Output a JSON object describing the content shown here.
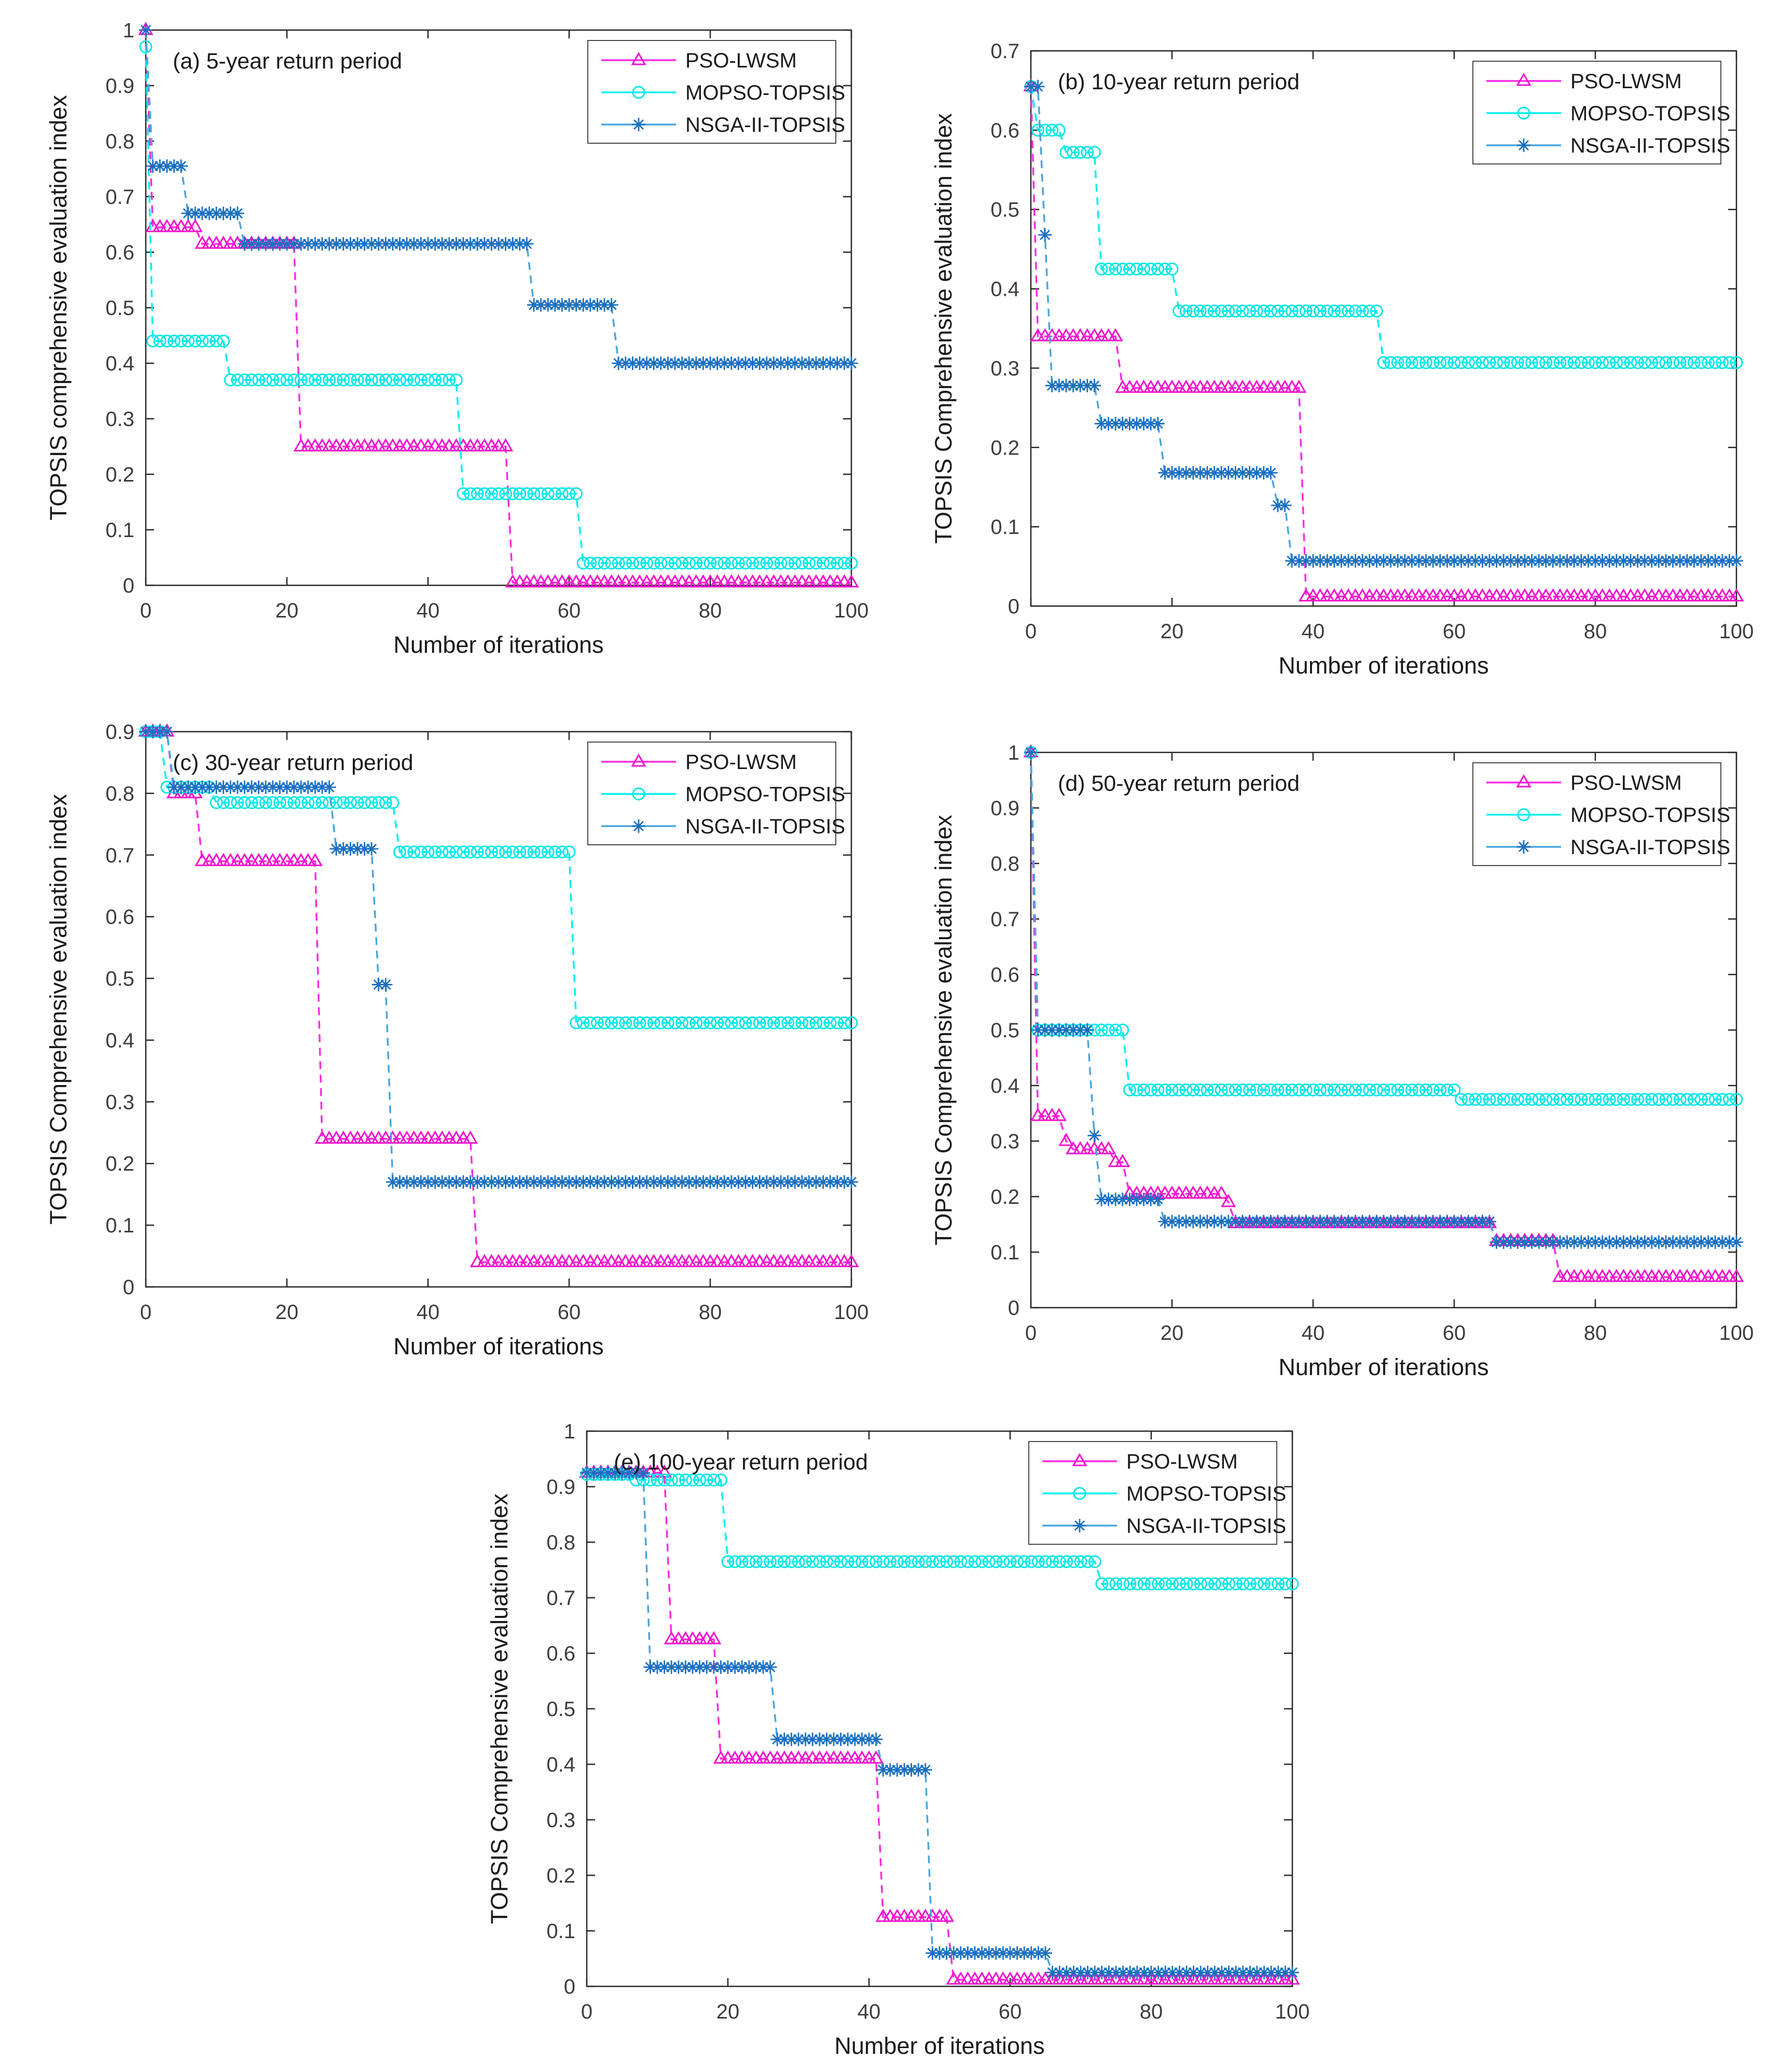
{
  "figure": {
    "description": "Five-panel convergence figure: TOPSIS evaluation index versus iterations for three optimization algorithms under different flood return periods",
    "panels": [
      "a",
      "b",
      "c",
      "d",
      "e"
    ]
  },
  "colors": {
    "pso_line": "#ff2be2",
    "pso_marker": "#f014cc",
    "mopso_line": "#00f0f0",
    "mopso_marker": "#10e6e6",
    "nsga_line": "#4aa6dd",
    "nsga_marker": "#1b6fc0",
    "axis": "#262626",
    "tick_text": "#3d3d3d",
    "label_text": "#1a1a1a",
    "legend_border": "#4a4a4a",
    "background": "#ffffff"
  },
  "chart_data": [
    {
      "id": "a",
      "type": "line",
      "title": "(a) 5-year return period",
      "xlabel": "Number of iterations",
      "ylabel": "TOPSIS comprehensive evaluation index",
      "xlim": [
        0,
        100
      ],
      "ylim": [
        0,
        1
      ],
      "xticks": [
        0,
        20,
        40,
        60,
        80,
        100
      ],
      "yticks": [
        0,
        0.1,
        0.2,
        0.3,
        0.4,
        0.5,
        0.6,
        0.7,
        0.8,
        0.9,
        1
      ],
      "grid": false,
      "legend_position": "top-right",
      "series": [
        {
          "name": "PSO-LWSM",
          "marker": "triangle",
          "color_key": "pso",
          "runs": [
            [
              0,
              0,
              1.0
            ],
            [
              1,
              7,
              0.645
            ],
            [
              8,
              21,
              0.615
            ],
            [
              22,
              51,
              0.25
            ],
            [
              52,
              100,
              0.005
            ]
          ]
        },
        {
          "name": "MOPSO-TOPSIS",
          "marker": "circle",
          "color_key": "mopso",
          "runs": [
            [
              0,
              0,
              0.97
            ],
            [
              1,
              11,
              0.44
            ],
            [
              12,
              44,
              0.37
            ],
            [
              45,
              61,
              0.165
            ],
            [
              62,
              100,
              0.04
            ]
          ]
        },
        {
          "name": "NSGA-II-TOPSIS",
          "marker": "asterisk",
          "color_key": "nsga",
          "runs": [
            [
              0,
              0,
              1.0
            ],
            [
              1,
              5,
              0.755
            ],
            [
              6,
              13,
              0.67
            ],
            [
              14,
              54,
              0.615
            ],
            [
              55,
              66,
              0.505
            ],
            [
              67,
              100,
              0.4
            ]
          ]
        }
      ]
    },
    {
      "id": "b",
      "type": "line",
      "title": "(b) 10-year return period",
      "xlabel": "Number of iterations",
      "ylabel": "TOPSIS Comprehensive evaluation index",
      "xlim": [
        0,
        100
      ],
      "ylim": [
        0,
        0.7
      ],
      "xticks": [
        0,
        20,
        40,
        60,
        80,
        100
      ],
      "yticks": [
        0,
        0.1,
        0.2,
        0.3,
        0.4,
        0.5,
        0.6,
        0.7
      ],
      "grid": false,
      "legend_position": "top-right",
      "series": [
        {
          "name": "PSO-LWSM",
          "marker": "triangle",
          "color_key": "pso",
          "runs": [
            [
              0,
              0,
              0.655
            ],
            [
              1,
              12,
              0.34
            ],
            [
              13,
              38,
              0.275
            ],
            [
              39,
              100,
              0.012
            ]
          ]
        },
        {
          "name": "MOPSO-TOPSIS",
          "marker": "circle",
          "color_key": "mopso",
          "runs": [
            [
              0,
              0,
              0.655
            ],
            [
              1,
              4,
              0.6
            ],
            [
              5,
              9,
              0.572
            ],
            [
              10,
              20,
              0.425
            ],
            [
              21,
              49,
              0.372
            ],
            [
              50,
              100,
              0.307
            ]
          ]
        },
        {
          "name": "NSGA-II-TOPSIS",
          "marker": "asterisk",
          "color_key": "nsga",
          "runs": [
            [
              0,
              1,
              0.655
            ],
            [
              2,
              2,
              0.468
            ],
            [
              3,
              9,
              0.278
            ],
            [
              10,
              18,
              0.23
            ],
            [
              19,
              34,
              0.168
            ],
            [
              35,
              36,
              0.127
            ],
            [
              37,
              100,
              0.057
            ]
          ]
        }
      ]
    },
    {
      "id": "c",
      "type": "line",
      "title": "(c) 30-year return period",
      "xlabel": "Number of iterations",
      "ylabel": "TOPSIS Comprehensive evaluation index",
      "xlim": [
        0,
        100
      ],
      "ylim": [
        0,
        0.9
      ],
      "xticks": [
        0,
        20,
        40,
        60,
        80,
        100
      ],
      "yticks": [
        0,
        0.1,
        0.2,
        0.3,
        0.4,
        0.5,
        0.6,
        0.7,
        0.8,
        0.9
      ],
      "grid": false,
      "legend_position": "top-right",
      "series": [
        {
          "name": "PSO-LWSM",
          "marker": "triangle",
          "color_key": "pso",
          "runs": [
            [
              0,
              3,
              0.9
            ],
            [
              4,
              7,
              0.8
            ],
            [
              8,
              24,
              0.69
            ],
            [
              25,
              46,
              0.24
            ],
            [
              47,
              100,
              0.04
            ]
          ]
        },
        {
          "name": "MOPSO-TOPSIS",
          "marker": "circle",
          "color_key": "mopso",
          "runs": [
            [
              0,
              2,
              0.9
            ],
            [
              3,
              9,
              0.81
            ],
            [
              10,
              35,
              0.785
            ],
            [
              36,
              60,
              0.705
            ],
            [
              61,
              100,
              0.428
            ]
          ]
        },
        {
          "name": "NSGA-II-TOPSIS",
          "marker": "asterisk",
          "color_key": "nsga",
          "runs": [
            [
              0,
              3,
              0.9
            ],
            [
              4,
              26,
              0.81
            ],
            [
              27,
              32,
              0.71
            ],
            [
              33,
              34,
              0.49
            ],
            [
              35,
              100,
              0.17
            ]
          ]
        }
      ]
    },
    {
      "id": "d",
      "type": "line",
      "title": "(d) 50-year return period",
      "xlabel": "Number of iterations",
      "ylabel": "TOPSIS Comprehensive evaluation index",
      "xlim": [
        0,
        100
      ],
      "ylim": [
        0,
        1
      ],
      "xticks": [
        0,
        20,
        40,
        60,
        80,
        100
      ],
      "yticks": [
        0,
        0.1,
        0.2,
        0.3,
        0.4,
        0.5,
        0.6,
        0.7,
        0.8,
        0.9,
        1
      ],
      "grid": false,
      "legend_position": "top-right",
      "series": [
        {
          "name": "PSO-LWSM",
          "marker": "triangle",
          "color_key": "pso",
          "runs": [
            [
              0,
              0,
              1.0
            ],
            [
              1,
              4,
              0.345
            ],
            [
              5,
              5,
              0.3
            ],
            [
              6,
              11,
              0.285
            ],
            [
              12,
              13,
              0.262
            ],
            [
              14,
              27,
              0.205
            ],
            [
              28,
              28,
              0.19
            ],
            [
              29,
              65,
              0.152
            ],
            [
              66,
              74,
              0.12
            ],
            [
              75,
              100,
              0.055
            ]
          ]
        },
        {
          "name": "MOPSO-TOPSIS",
          "marker": "circle",
          "color_key": "mopso",
          "runs": [
            [
              0,
              0,
              1.0
            ],
            [
              1,
              13,
              0.5
            ],
            [
              14,
              60,
              0.392
            ],
            [
              61,
              100,
              0.375
            ]
          ]
        },
        {
          "name": "NSGA-II-TOPSIS",
          "marker": "asterisk",
          "color_key": "nsga",
          "runs": [
            [
              0,
              0,
              1.0
            ],
            [
              1,
              8,
              0.5
            ],
            [
              9,
              9,
              0.31
            ],
            [
              10,
              18,
              0.195
            ],
            [
              19,
              65,
              0.155
            ],
            [
              66,
              100,
              0.118
            ]
          ]
        }
      ]
    },
    {
      "id": "e",
      "type": "line",
      "title": "(e) 100-year return period",
      "xlabel": "Number of iterations",
      "ylabel": "TOPSIS Comprehensive evaluation index",
      "xlim": [
        0,
        100
      ],
      "ylim": [
        0,
        1
      ],
      "xticks": [
        0,
        20,
        40,
        60,
        80,
        100
      ],
      "yticks": [
        0,
        0.1,
        0.2,
        0.3,
        0.4,
        0.5,
        0.6,
        0.7,
        0.8,
        0.9,
        1
      ],
      "grid": false,
      "legend_position": "top-right",
      "series": [
        {
          "name": "PSO-LWSM",
          "marker": "triangle",
          "color_key": "pso",
          "runs": [
            [
              0,
              11,
              0.925
            ],
            [
              12,
              18,
              0.625
            ],
            [
              19,
              41,
              0.41
            ],
            [
              42,
              51,
              0.125
            ],
            [
              52,
              100,
              0.012
            ]
          ]
        },
        {
          "name": "MOPSO-TOPSIS",
          "marker": "circle",
          "color_key": "mopso",
          "runs": [
            [
              0,
              6,
              0.922
            ],
            [
              7,
              19,
              0.912
            ],
            [
              20,
              72,
              0.765
            ],
            [
              73,
              100,
              0.725
            ]
          ]
        },
        {
          "name": "NSGA-II-TOPSIS",
          "marker": "asterisk",
          "color_key": "nsga",
          "runs": [
            [
              0,
              8,
              0.925
            ],
            [
              9,
              26,
              0.575
            ],
            [
              27,
              41,
              0.445
            ],
            [
              42,
              48,
              0.39
            ],
            [
              49,
              65,
              0.06
            ],
            [
              66,
              100,
              0.025
            ]
          ]
        }
      ]
    }
  ]
}
